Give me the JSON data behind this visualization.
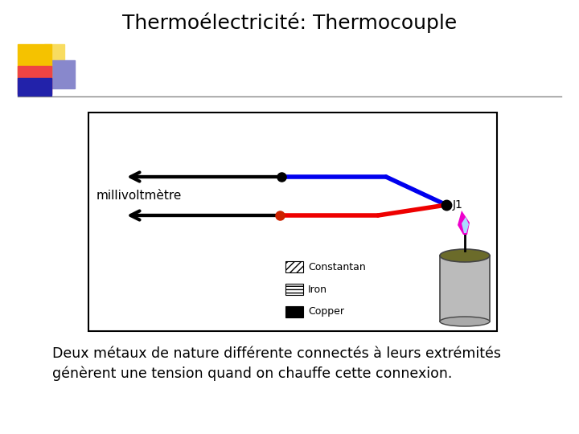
{
  "title": "Thermoélectricité: Thermocouple",
  "title_fontsize": 18,
  "body_text_line1": "Deux métaux de nature différente connectés à leurs extrémités",
  "body_text_line2": "génèrent une tension quand on chauffe cette connexion.",
  "body_fontsize": 12.5,
  "label_millivoltmetre": "millivoltmètre",
  "label_J1": "J1",
  "legend_constantan": "Constantan",
  "legend_iron": "Iron",
  "legend_copper": "Copper",
  "bg_color": "#ffffff",
  "blue_color": "#0000ee",
  "red_color": "#ee0000",
  "black_color": "#000000",
  "candle_body_color": "#bbbbbb",
  "candle_top_color": "#6b6b2a",
  "logo_yellow": "#f5c200",
  "logo_red": "#ee4444",
  "logo_blue_light": "#8888cc",
  "logo_blue_dark": "#2222aa"
}
